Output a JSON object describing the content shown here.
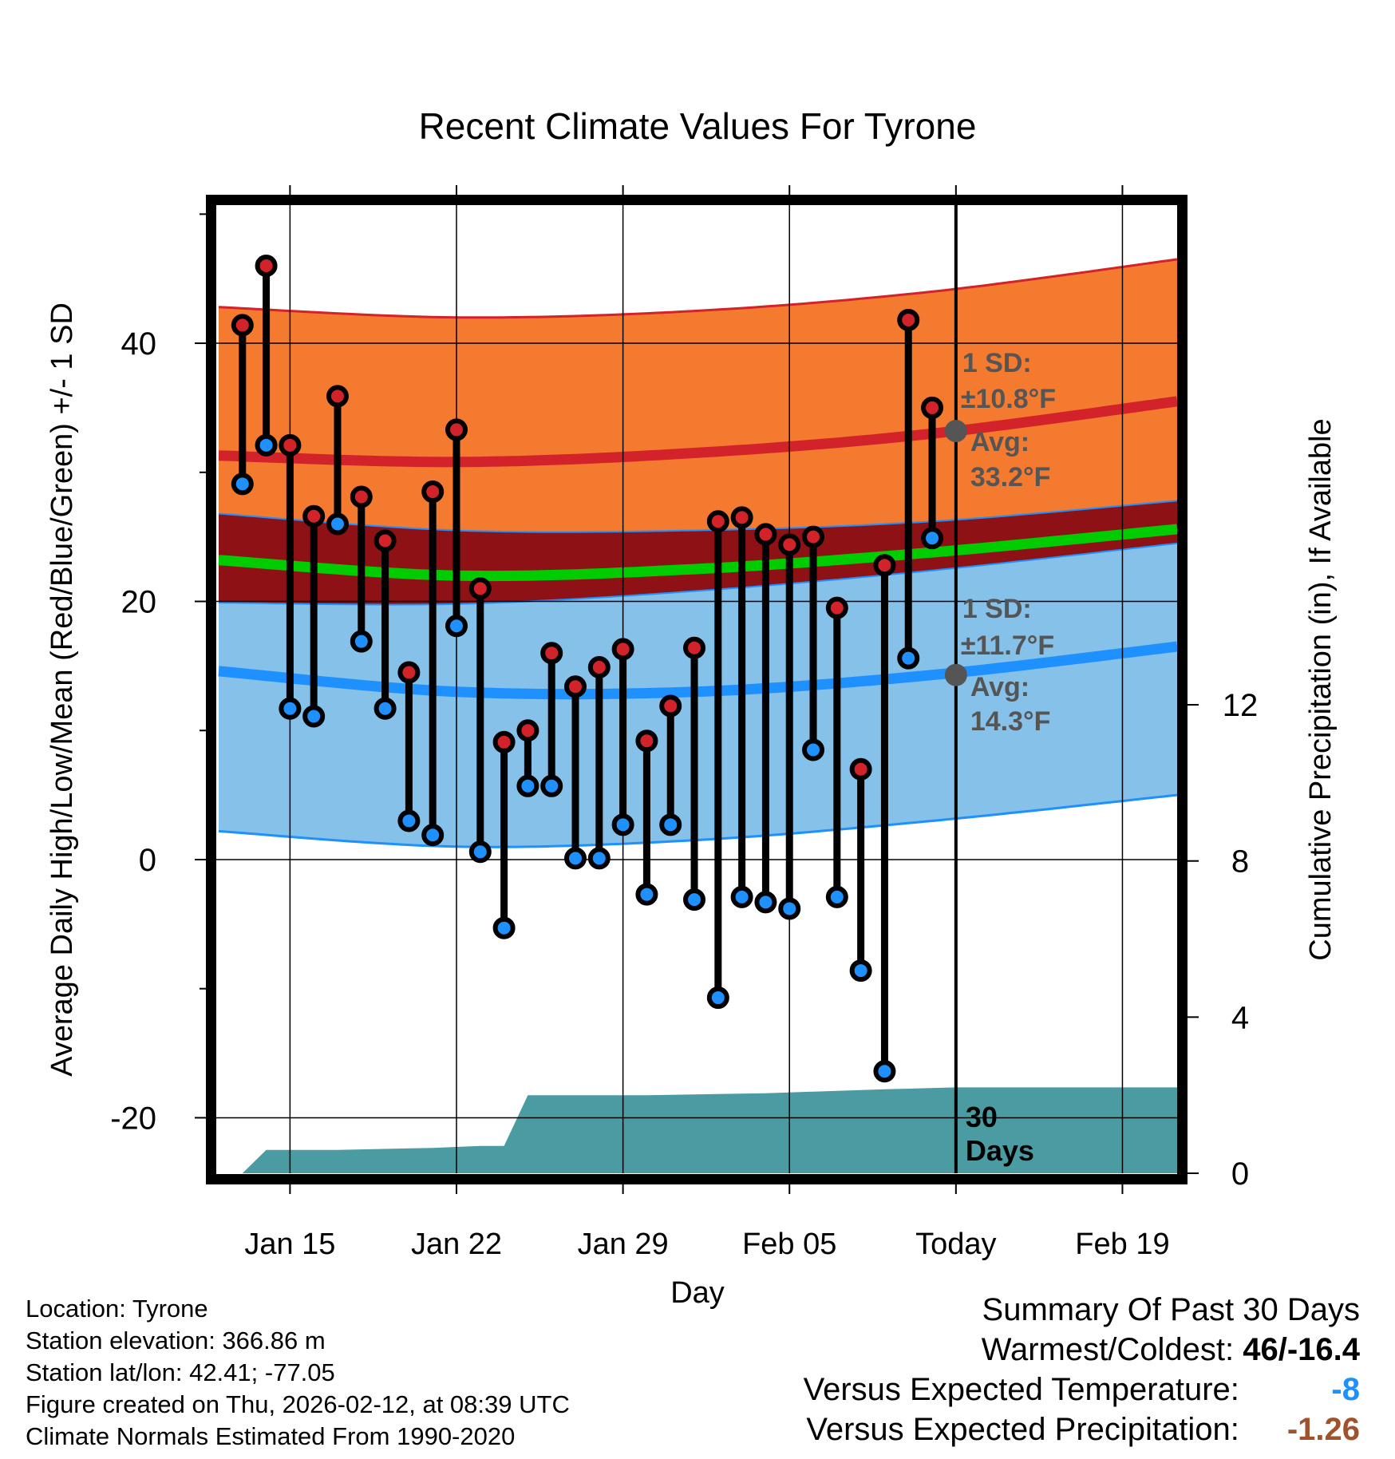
{
  "title": "Recent Climate Values For Tyrone",
  "chart_data": {
    "type": "line",
    "title": "Recent Climate Values For Tyrone",
    "xlabel": "Day",
    "ylabel": "Average Daily High/Low/Mean (Red/Blue/Green) +/- 1 SD",
    "y2label": "Cumulative Precipitation (in), If Available",
    "xlim": [
      11.9,
      52.3
    ],
    "ylim": [
      -24.3,
      50.7
    ],
    "y2lim": [
      0,
      24.8
    ],
    "x_ticks": [
      {
        "x": 15,
        "label": "Jan 15"
      },
      {
        "x": 22,
        "label": "Jan 22"
      },
      {
        "x": 29,
        "label": "Jan 29"
      },
      {
        "x": 36,
        "label": "Feb 05"
      },
      {
        "x": 43,
        "label": "Today"
      },
      {
        "x": 50,
        "label": "Feb 19"
      }
    ],
    "y_ticks": [
      {
        "y": -20,
        "label": "-20"
      },
      {
        "y": 0,
        "label": "0"
      },
      {
        "y": 20,
        "label": "20"
      },
      {
        "y": 40,
        "label": "40"
      }
    ],
    "y_minor_ticks": [
      -10,
      10,
      30,
      50
    ],
    "y2_ticks": [
      {
        "y": 0,
        "label": "0"
      },
      {
        "y": 4,
        "label": "4"
      },
      {
        "y": 8,
        "label": "8"
      },
      {
        "y": 12,
        "label": "12"
      }
    ],
    "today_x": 43,
    "today_label": "30\nDays",
    "normals": {
      "x": [
        12,
        22,
        32,
        42,
        52.3
      ],
      "high_mean": [
        31.3,
        30.8,
        31.5,
        33.0,
        35.5
      ],
      "high_upper": [
        42.8,
        42.0,
        42.5,
        44.0,
        46.5
      ],
      "high_lower": [
        26.8,
        25.5,
        25.5,
        26.2,
        27.8
      ],
      "avg_mean": [
        23.2,
        22.0,
        22.5,
        23.8,
        25.6
      ],
      "low_mean": [
        14.6,
        13.0,
        13.0,
        14.3,
        16.5
      ],
      "low_upper": [
        19.9,
        19.8,
        20.8,
        22.4,
        24.5
      ],
      "low_lower": [
        2.2,
        1.0,
        1.5,
        3.0,
        5.0
      ]
    },
    "daily": [
      {
        "x": 13,
        "high": 41.4,
        "low": 29.1
      },
      {
        "x": 14,
        "high": 46.0,
        "low": 32.1
      },
      {
        "x": 15,
        "high": 32.1,
        "low": 11.7
      },
      {
        "x": 16,
        "high": 26.6,
        "low": 11.1
      },
      {
        "x": 17,
        "high": 35.9,
        "low": 26.0
      },
      {
        "x": 18,
        "high": 28.1,
        "low": 16.9
      },
      {
        "x": 19,
        "high": 24.7,
        "low": 11.7
      },
      {
        "x": 20,
        "high": 14.5,
        "low": 3.0
      },
      {
        "x": 21,
        "high": 28.5,
        "low": 1.9
      },
      {
        "x": 22,
        "high": 33.3,
        "low": 18.1
      },
      {
        "x": 23,
        "high": 21.0,
        "low": 0.6
      },
      {
        "x": 24,
        "high": 9.1,
        "low": -5.3
      },
      {
        "x": 25,
        "high": 10.0,
        "low": 5.7
      },
      {
        "x": 26,
        "high": 16.0,
        "low": 5.7
      },
      {
        "x": 27,
        "high": 13.4,
        "low": 0.1
      },
      {
        "x": 28,
        "high": 14.9,
        "low": 0.1
      },
      {
        "x": 29,
        "high": 16.3,
        "low": 2.7
      },
      {
        "x": 30,
        "high": 9.2,
        "low": -2.7
      },
      {
        "x": 31,
        "high": 11.9,
        "low": 2.7
      },
      {
        "x": 32,
        "high": 16.4,
        "low": -3.1
      },
      {
        "x": 33,
        "high": 26.2,
        "low": -10.7
      },
      {
        "x": 34,
        "high": 26.5,
        "low": -2.9
      },
      {
        "x": 35,
        "high": 25.2,
        "low": -3.3
      },
      {
        "x": 36,
        "high": 24.4,
        "low": -3.8
      },
      {
        "x": 37,
        "high": 25.0,
        "low": 8.5
      },
      {
        "x": 38,
        "high": 19.5,
        "low": -2.9
      },
      {
        "x": 39,
        "high": 7.0,
        "low": -8.6
      },
      {
        "x": 40,
        "high": 22.8,
        "low": -16.4
      },
      {
        "x": 41,
        "high": 41.8,
        "low": 15.6
      },
      {
        "x": 42,
        "high": 35.0,
        "low": 24.9
      }
    ],
    "precip": {
      "x": [
        12.0,
        13.0,
        14.0,
        17.0,
        21.0,
        23.0,
        24.0,
        25.0,
        30.0,
        35.0,
        40.0,
        43.0,
        52.3
      ],
      "y": [
        0,
        0,
        0.6,
        0.6,
        0.65,
        0.7,
        0.7,
        2.0,
        2.0,
        2.05,
        2.15,
        2.2,
        2.2
      ]
    },
    "annotations": {
      "high_sd": "1 SD:",
      "high_sd_value": "±10.8°F",
      "high_avg": "Avg:",
      "high_avg_value": "33.2°F",
      "low_sd": "1 SD:",
      "low_sd_value": "±11.7°F",
      "low_avg": "Avg:",
      "low_avg_value": "14.3°F",
      "high_avg_today": 33.2,
      "low_avg_today": 14.3
    },
    "colors": {
      "high_band": "#f47a2f",
      "high_line": "#d3232a",
      "mean_band": "#8e1116",
      "mean_line": "#00cc00",
      "low_band": "#85c1e9",
      "low_line": "#1e90ff",
      "high_dot": "#d3232a",
      "low_dot": "#1e90ff",
      "precip": "#4a9ba2",
      "annotation": "#555555"
    }
  },
  "footer": {
    "location": "Location: Tyrone",
    "elevation": "Station elevation: 366.86 m",
    "latlon": "Station lat/lon: 42.41; -77.05",
    "created": "Figure created on Thu, 2026-02-12, at 08:39 UTC",
    "normals": "Climate Normals Estimated From 1990-2020"
  },
  "summary": {
    "title": "Summary Of Past 30 Days",
    "warm_cold_label": "Warmest/Coldest:",
    "warm_cold_value": "46/-16.4",
    "temp_label": "Versus Expected Temperature:",
    "temp_value": "-8",
    "temp_color": "#1e90ff",
    "precip_label": "Versus Expected Precipitation:",
    "precip_value": "-1.26",
    "precip_color": "#a0522d"
  }
}
